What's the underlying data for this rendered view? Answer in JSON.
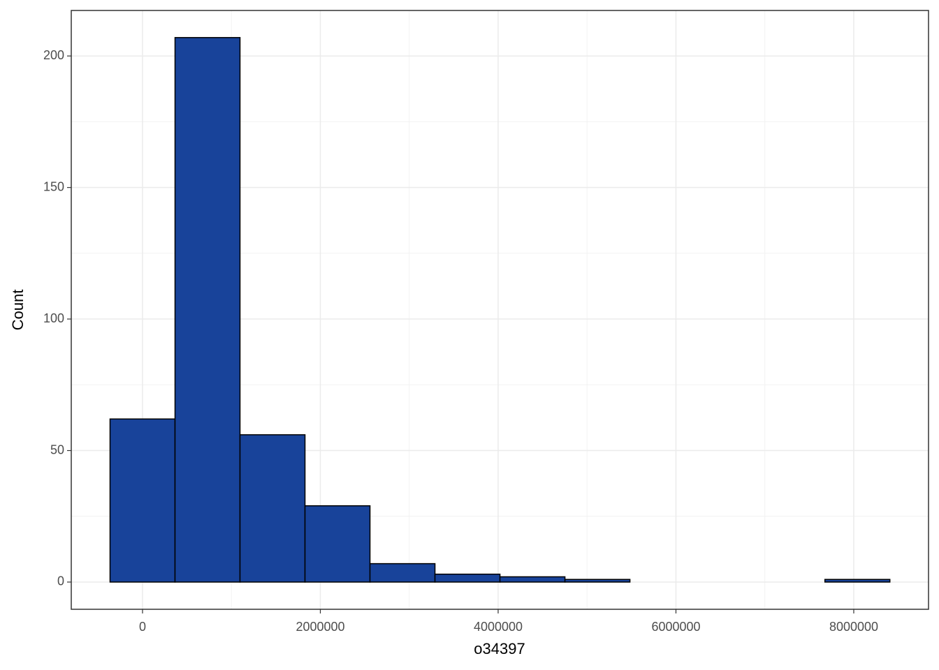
{
  "chart_data": {
    "type": "histogram",
    "x_label": "o34397",
    "y_label": "Count",
    "bins": [
      -365500,
      365500,
      1096500,
      1827500,
      2558500,
      3289500,
      4020500,
      4751500,
      5482500,
      6213500,
      6944500,
      7675500,
      8406500
    ],
    "values": [
      62,
      207,
      56,
      29,
      7,
      3,
      2,
      1,
      0,
      0,
      0,
      1
    ],
    "color": "#18439a",
    "xlim": [
      -801600,
      8841000
    ],
    "ylim": [
      -10.35,
      217.3
    ],
    "xticks": [
      0,
      2000000,
      4000000,
      6000000,
      8000000
    ],
    "yticks": [
      0,
      50,
      100,
      150,
      200
    ],
    "x_minor_ticks": [
      1000000,
      3000000,
      5000000,
      7000000
    ],
    "y_minor_ticks": [
      25,
      75,
      125,
      175
    ],
    "grid": true
  }
}
